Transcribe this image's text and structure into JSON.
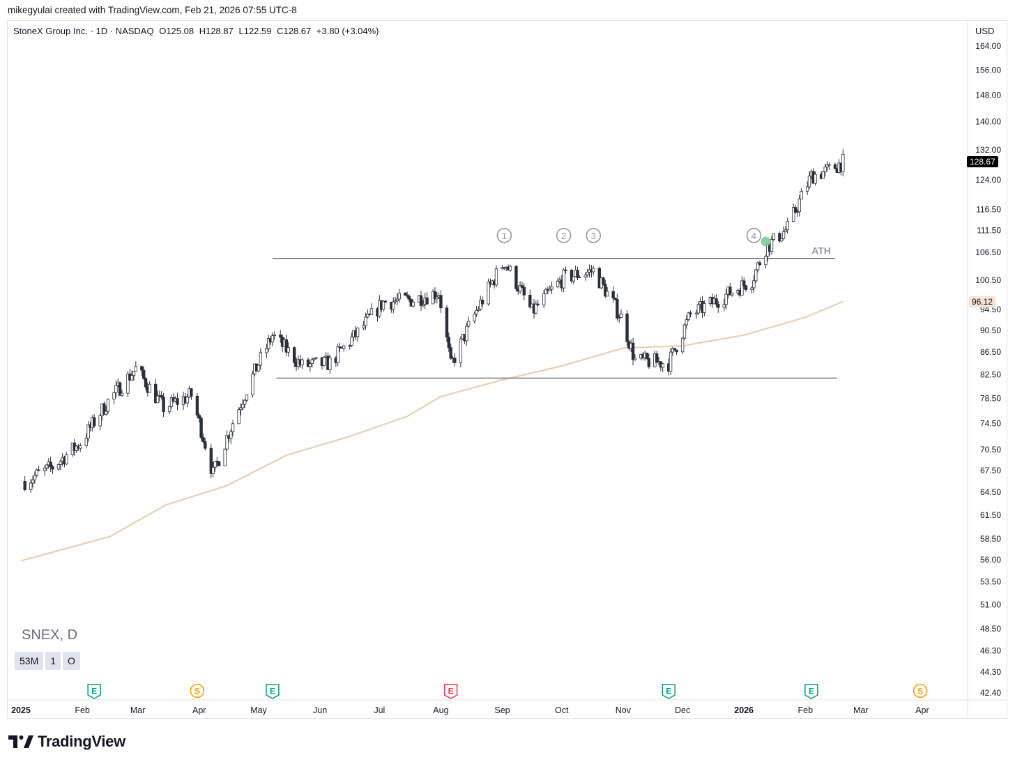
{
  "header": {
    "author_line": "mikegyulai created with TradingView.com, Feb 21, 2026 07:55 UTC-8"
  },
  "legend": {
    "symbol": "StoneX Group Inc. · 1D · NASDAQ",
    "open": "O125.08",
    "high": "H128.87",
    "low": "L122.59",
    "close": "C128.67",
    "change": "+3.80 (+3.04%)"
  },
  "currency": "USD",
  "watermark": {
    "ticker": "SNEX, D",
    "chips": [
      "53M",
      "1",
      "O"
    ]
  },
  "branding": {
    "name": "TradingView"
  },
  "price_tags": {
    "last": "128.67",
    "ma": "96.12"
  },
  "annotations": {
    "ath_label": "ATH",
    "markers": [
      "1",
      "2",
      "3",
      "4"
    ]
  },
  "events": [
    {
      "type": "E",
      "date": "2025-02-07",
      "color": "#089981"
    },
    {
      "type": "S",
      "date": "2025-03-31",
      "color": "#ff9800"
    },
    {
      "type": "E",
      "date": "2025-05-08",
      "color": "#089981"
    },
    {
      "type": "E",
      "date": "2025-08-06",
      "color": "#f23645"
    },
    {
      "type": "E",
      "date": "2025-11-24",
      "color": "#089981"
    },
    {
      "type": "E",
      "date": "2026-02-04",
      "color": "#089981"
    },
    {
      "type": "S",
      "date": "2026-03-31",
      "color": "#ff9800"
    }
  ],
  "colors": {
    "up_candle_fill": "#ffffff",
    "down_candle_fill": "#2a2e39",
    "candle_outline": "#2a2e39",
    "moving_average": "#e8cfb4",
    "level_line": "#5d606b",
    "marker": "#9598a1",
    "signal_dot": "#81c995",
    "last_price_tag": "#000000",
    "ma_tag": "#f5e4d3",
    "grid_text": "#131722"
  },
  "chart_data": {
    "type": "candlestick",
    "scale": "log",
    "symbol": "SNEX",
    "interval": "1D",
    "x_axis_labels": [
      "2025",
      "Feb",
      "Mar",
      "Apr",
      "May",
      "Jun",
      "Jul",
      "Aug",
      "Sep",
      "Oct",
      "Nov",
      "Dec",
      "2026",
      "Feb",
      "Mar",
      "Apr"
    ],
    "y_axis_labels": [
      "164.00",
      "156.00",
      "148.00",
      "140.00",
      "132.00",
      "124.00",
      "116.50",
      "111.50",
      "106.50",
      "100.50",
      "94.50",
      "90.50",
      "86.50",
      "82.50",
      "78.50",
      "74.50",
      "70.50",
      "67.50",
      "64.50",
      "61.50",
      "58.50",
      "56.00",
      "53.50",
      "51.00",
      "48.50",
      "46.30",
      "44.30",
      "42.40"
    ],
    "ylim": [
      42.4,
      164
    ],
    "grid": false,
    "levels": [
      {
        "name": "resistance",
        "value": 105.2,
        "label": "ATH",
        "from": "2025-05-08",
        "to": "2026-02-16"
      },
      {
        "name": "support",
        "value": 81.9,
        "from": "2025-05-10",
        "to": "2026-02-17"
      }
    ],
    "touch_markers": [
      {
        "label": "1",
        "date": "2025-09-02",
        "price": 106.4
      },
      {
        "label": "2",
        "date": "2025-10-02",
        "price": 106.4
      },
      {
        "label": "3",
        "date": "2025-10-17",
        "price": 106.4
      },
      {
        "label": "4",
        "date": "2026-01-06",
        "price": 106.4
      }
    ],
    "signal_point": {
      "date": "2026-01-12",
      "price": 107.7
    },
    "moving_average": [
      {
        "date": "2025-01-01",
        "value": 55.9
      },
      {
        "date": "2025-02-15",
        "value": 58.8
      },
      {
        "date": "2025-03-15",
        "value": 62.8
      },
      {
        "date": "2025-04-15",
        "value": 65.4
      },
      {
        "date": "2025-05-15",
        "value": 69.7
      },
      {
        "date": "2025-06-15",
        "value": 72.4
      },
      {
        "date": "2025-07-15",
        "value": 75.6
      },
      {
        "date": "2025-08-01",
        "value": 78.8
      },
      {
        "date": "2025-09-01",
        "value": 81.6
      },
      {
        "date": "2025-10-01",
        "value": 84.0
      },
      {
        "date": "2025-11-01",
        "value": 87.2
      },
      {
        "date": "2025-12-01",
        "value": 87.6
      },
      {
        "date": "2026-01-01",
        "value": 89.6
      },
      {
        "date": "2026-02-01",
        "value": 93.0
      },
      {
        "date": "2026-02-20",
        "value": 96.12
      }
    ],
    "candles": [
      {
        "date": "2025-01-03",
        "close": 66.0
      },
      {
        "date": "2025-01-17",
        "close": 68.0
      },
      {
        "date": "2025-01-31",
        "close": 71.5
      },
      {
        "date": "2025-02-14",
        "close": 78.0
      },
      {
        "date": "2025-02-28",
        "close": 83.5
      },
      {
        "date": "2025-03-14",
        "close": 77.0
      },
      {
        "date": "2025-03-28",
        "close": 79.0
      },
      {
        "date": "2025-04-08",
        "close": 67.0
      },
      {
        "date": "2025-04-25",
        "close": 80.0
      },
      {
        "date": "2025-05-08",
        "close": 89.5
      },
      {
        "date": "2025-05-23",
        "close": 84.0
      },
      {
        "date": "2025-06-06",
        "close": 84.5
      },
      {
        "date": "2025-06-20",
        "close": 90.0
      },
      {
        "date": "2025-07-03",
        "close": 96.0
      },
      {
        "date": "2025-07-18",
        "close": 96.5
      },
      {
        "date": "2025-07-31",
        "close": 98.0
      },
      {
        "date": "2025-08-06",
        "close": 84.0
      },
      {
        "date": "2025-08-20",
        "close": 95.0
      },
      {
        "date": "2025-09-02",
        "close": 104.5
      },
      {
        "date": "2025-09-16",
        "close": 94.0
      },
      {
        "date": "2025-10-02",
        "close": 101.0
      },
      {
        "date": "2025-10-17",
        "close": 102.5
      },
      {
        "date": "2025-10-31",
        "close": 93.0
      },
      {
        "date": "2025-11-07",
        "close": 85.0
      },
      {
        "date": "2025-11-24",
        "close": 84.5
      },
      {
        "date": "2025-12-05",
        "close": 93.5
      },
      {
        "date": "2025-12-19",
        "close": 96.5
      },
      {
        "date": "2026-01-05",
        "close": 100.5
      },
      {
        "date": "2026-01-12",
        "close": 107.5
      },
      {
        "date": "2026-01-23",
        "close": 112.0
      },
      {
        "date": "2026-02-04",
        "close": 125.0
      },
      {
        "date": "2026-02-13",
        "close": 126.5
      },
      {
        "date": "2026-02-20",
        "close": 128.67
      }
    ]
  }
}
